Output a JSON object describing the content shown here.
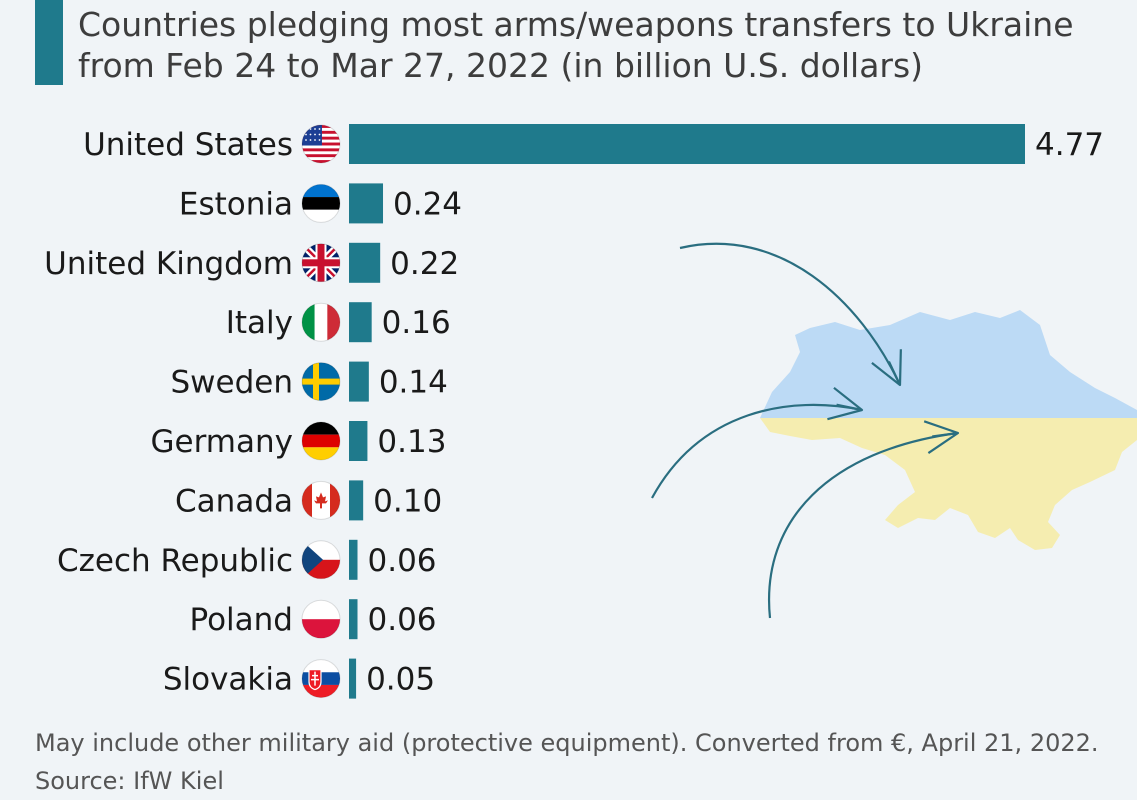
{
  "title": "Countries pledging most arms/weapons transfers to Ukraine from Feb 24 to Mar 27, 2022 (in billion U.S. dollars)",
  "footnote": "May include other military aid (protective equipment). Converted from €, April 21, 2022.",
  "source": "Source: IfW Kiel",
  "colors": {
    "bar": "#1f7a8c",
    "text": "#1a1a1a",
    "map_blue": "#bcdaf5",
    "map_yellow": "#f5edb0",
    "arrow": "#2a6e80"
  },
  "chart_data": {
    "type": "bar",
    "orientation": "horizontal",
    "title": "Countries pledging most arms/weapons transfers to Ukraine from Feb 24 to Mar 27, 2022 (in billion U.S. dollars)",
    "xlabel": "",
    "ylabel": "",
    "xlim": [
      0,
      4.77
    ],
    "categories": [
      "United States",
      "Estonia",
      "United Kingdom",
      "Italy",
      "Sweden",
      "Germany",
      "Canada",
      "Czech Republic",
      "Poland",
      "Slovakia"
    ],
    "values": [
      4.77,
      0.24,
      0.22,
      0.16,
      0.14,
      0.13,
      0.1,
      0.06,
      0.06,
      0.05
    ],
    "labels": [
      "4.77",
      "0.24",
      "0.22",
      "0.16",
      "0.14",
      "0.13",
      "0.10",
      "0.06",
      "0.06",
      "0.05"
    ],
    "flags": [
      "us",
      "ee",
      "uk",
      "it",
      "se",
      "de",
      "ca",
      "cz",
      "pl",
      "sk"
    ]
  }
}
